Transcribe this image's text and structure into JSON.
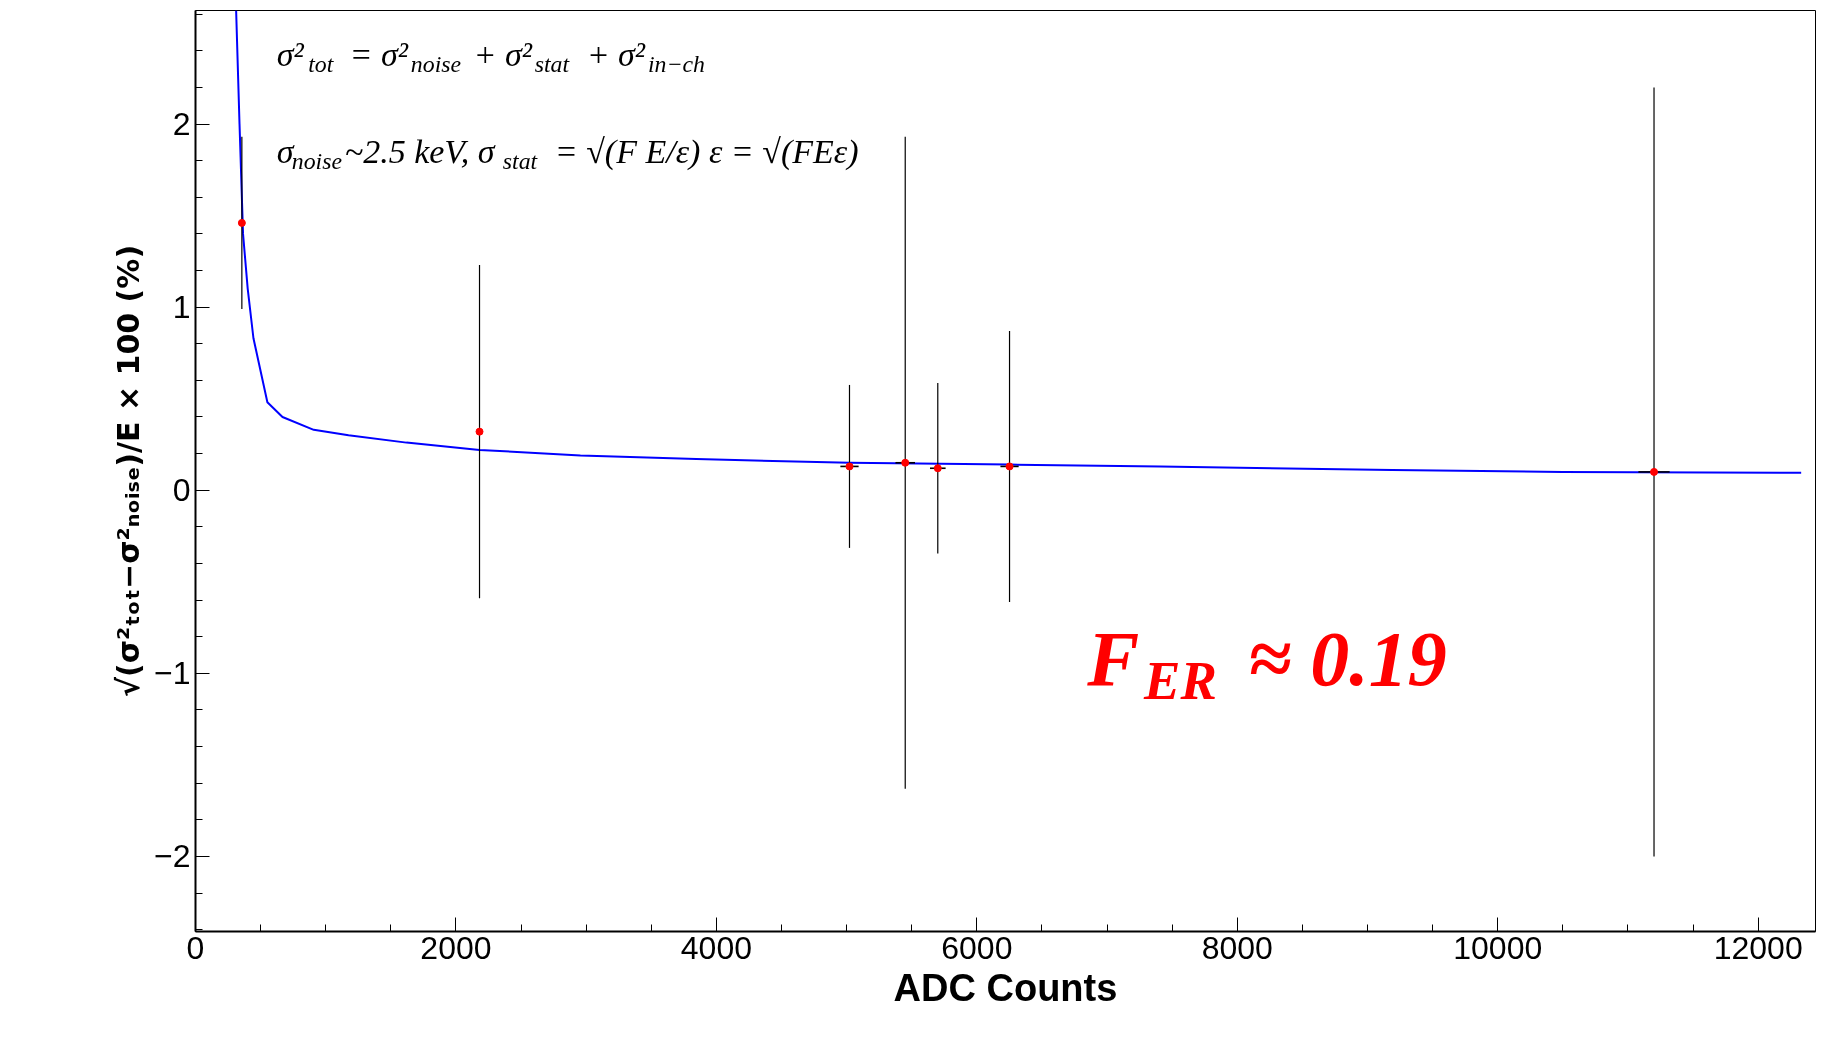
{
  "chart_data": {
    "type": "scatter",
    "xlabel": "ADC Counts",
    "ylabel": "√(σ²ₜₒₜ−σ²ₙₒᵢₛₑ)/E × 100 (%)",
    "x": [
      356,
      2181,
      5022,
      5450,
      5700,
      6251,
      11200
    ],
    "series": [
      {
        "color": "#ff0000",
        "marker": "circle",
        "values": [
          1.46,
          0.32,
          0.13,
          0.15,
          0.12,
          0.13,
          0.1
        ],
        "errors": [
          0.47,
          0.91,
          0.445,
          1.78,
          0.465,
          0.74,
          2.1
        ],
        "xerrors": [
          null,
          null,
          70,
          75,
          60,
          70,
          120
        ]
      },
      {
        "type": "line",
        "color": "#0000ff",
        "x": [
          312,
          338,
          365,
          401,
          445,
          552,
          668,
          908,
          1175,
          1620,
          2181,
          2956,
          3846,
          5022,
          6251,
          7409,
          9190,
          10500,
          12330
        ],
        "values": [
          2.62,
          2.0,
          1.4,
          1.1,
          0.83,
          0.48,
          0.4,
          0.33,
          0.3,
          0.26,
          0.22,
          0.19,
          0.17,
          0.15,
          0.14,
          0.13,
          0.11,
          0.1,
          0.095
        ]
      }
    ],
    "annotations": [
      "σ²$_{tot}$ = σ²$_{noise}$ + σ²$_{stat}$ + σ²$_{in−ch}$",
      "σ$_{noise}$~2.5 keV, σ$_{stat}$ = √(F E/ε) ε = √(FEε)",
      "F$_{ER}$ ≈ 0.19"
    ],
    "xlim": [
      0,
      12440
    ],
    "ylim": [
      -2.41,
      2.62
    ],
    "xticks": [
      0,
      2000,
      4000,
      6000,
      8000,
      10000,
      12000
    ],
    "yticks": [
      -2,
      -1,
      0,
      1,
      2
    ],
    "grid": false
  }
}
